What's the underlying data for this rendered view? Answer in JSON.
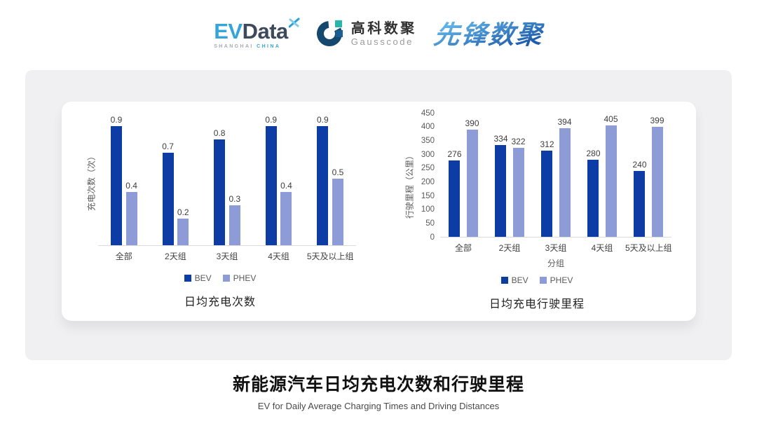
{
  "header": {
    "evdata": {
      "ev": "EV",
      "data": "Data",
      "sub_left": "SHANGHAI",
      "sub_right": "CHINA"
    },
    "gausscode": {
      "name_cn": "高科数聚",
      "name_en": "Gausscode"
    },
    "xianfeng": {
      "text": "先锋数聚"
    }
  },
  "colors": {
    "bev": "#0E3CA5",
    "phev": "#8D9BD6",
    "panel_bg": "#F0F0F2",
    "card_bg": "#FFFFFF",
    "axis_line": "#DCDCDC",
    "tick_text": "#595959",
    "value_text": "#3D3D3D",
    "evdata_blue": "#35A4D9",
    "evdata_dark": "#3C4A5B",
    "gausscode_dark": "#15486F",
    "gausscode_teal": "#27B5AC",
    "xianfeng_gradient_from": "#5FB0E4",
    "xianfeng_gradient_to": "#1E5CAD"
  },
  "chart_data": [
    {
      "type": "bar",
      "title": "日均充电次数",
      "ylabel": "充电次数（次）",
      "xlabel": "",
      "categories": [
        "全部",
        "2天组",
        "3天组",
        "4天组",
        "5天及以上组"
      ],
      "series": [
        {
          "name": "BEV",
          "values": [
            0.9,
            0.7,
            0.8,
            0.9,
            0.9
          ]
        },
        {
          "name": "PHEV",
          "values": [
            0.4,
            0.2,
            0.3,
            0.4,
            0.5
          ]
        }
      ],
      "ylim": [
        0,
        1.0
      ],
      "yticks_visible": false,
      "grid": false,
      "legend_position": "bottom"
    },
    {
      "type": "bar",
      "title": "日均充电行驶里程",
      "ylabel": "行驶里程（公里）",
      "xlabel": "分组",
      "categories": [
        "全部",
        "2天组",
        "3天组",
        "4天组",
        "5天及以上组"
      ],
      "series": [
        {
          "name": "BEV",
          "values": [
            276,
            334,
            312,
            280,
            240
          ]
        },
        {
          "name": "PHEV",
          "values": [
            390,
            322,
            394,
            405,
            399
          ]
        }
      ],
      "ylim": [
        0,
        450
      ],
      "yticks": [
        0,
        50,
        100,
        150,
        200,
        250,
        300,
        350,
        400,
        450
      ],
      "yticks_visible": true,
      "grid": false,
      "legend_position": "bottom"
    }
  ],
  "footer": {
    "title": "新能源汽车日均充电次数和行驶里程",
    "subtitle": "EV for Daily Average Charging Times and Driving Distances"
  }
}
